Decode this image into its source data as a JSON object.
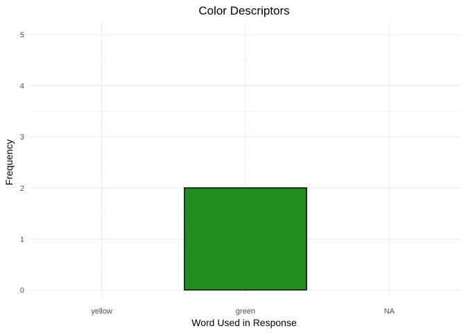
{
  "chart_data": {
    "type": "bar",
    "title": "Color Descriptors",
    "xlabel": "Word Used in Response",
    "ylabel": "Frequency",
    "categories": [
      "yellow",
      "green",
      "NA"
    ],
    "values": [
      0,
      2,
      0
    ],
    "bar_colors": [
      "#228B22",
      "#228B22",
      "#228B22"
    ],
    "bar_border_color": "#000000",
    "ylim": [
      0,
      5
    ],
    "yticks": [
      0,
      1,
      2,
      3,
      4,
      5
    ],
    "grid": true,
    "legend": "none"
  }
}
